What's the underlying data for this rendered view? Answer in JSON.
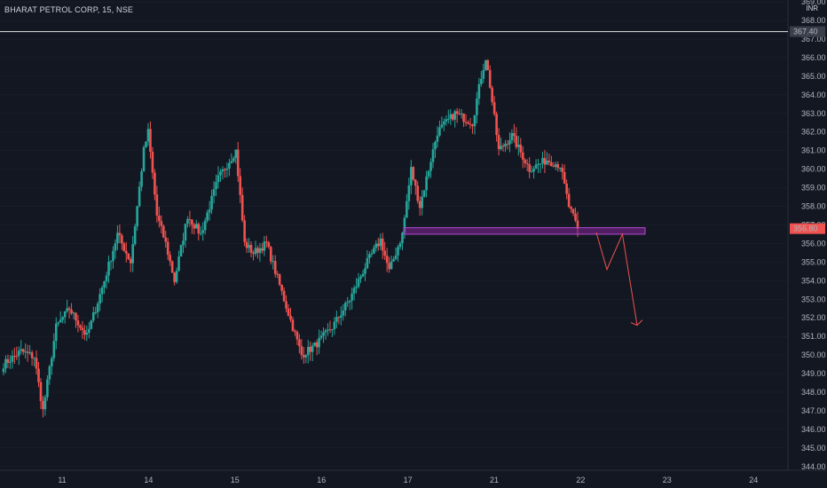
{
  "header": {
    "symbol_line": "BHARAT PETROL CORP, 15, NSE"
  },
  "currency": "INR",
  "colors": {
    "bg": "#131722",
    "up": "#26a69a",
    "down": "#ef5350",
    "zone": "#9c27b0",
    "line": "#e6e6e6",
    "arrow": "#ef5350",
    "grid": "#1f2330"
  },
  "chart_data": {
    "type": "candlestick",
    "title": "BHARAT PETROL CORP, 15, NSE",
    "ylim": [
      343.8,
      369.1
    ],
    "y_ticks": [
      "344.00",
      "345.00",
      "346.00",
      "347.00",
      "348.00",
      "349.00",
      "350.00",
      "351.00",
      "352.00",
      "353.00",
      "354.00",
      "355.00",
      "356.00",
      "357.00",
      "358.00",
      "359.00",
      "360.00",
      "361.00",
      "362.00",
      "363.00",
      "364.00",
      "365.00",
      "366.00",
      "367.00",
      "368.00",
      "369.00"
    ],
    "x_ticks": [
      "11",
      "14",
      "15",
      "16",
      "17",
      "21",
      "22",
      "23",
      "24"
    ],
    "price_label": "356.80",
    "horizontal_line": {
      "value": 367.4,
      "label": "367.40"
    },
    "zone": {
      "low": 356.5,
      "high": 356.85
    },
    "projection_path": [
      [
        0,
        356.6
      ],
      [
        0.26,
        354.6
      ],
      [
        0.64,
        356.5
      ],
      [
        1,
        351.6
      ]
    ],
    "anchors": [
      {
        "t": 0,
        "v": 349.5
      },
      {
        "t": 8,
        "v": 350.2
      },
      {
        "t": 14,
        "v": 349.9
      },
      {
        "t": 18,
        "v": 347.0
      },
      {
        "t": 24,
        "v": 351.5
      },
      {
        "t": 30,
        "v": 352.5
      },
      {
        "t": 38,
        "v": 351.0
      },
      {
        "t": 46,
        "v": 354.0
      },
      {
        "t": 52,
        "v": 356.5
      },
      {
        "t": 58,
        "v": 355.0
      },
      {
        "t": 64,
        "v": 361.0
      },
      {
        "t": 66,
        "v": 362.0
      },
      {
        "t": 70,
        "v": 357.5
      },
      {
        "t": 74,
        "v": 356.0
      },
      {
        "t": 78,
        "v": 354.0
      },
      {
        "t": 84,
        "v": 357.5
      },
      {
        "t": 90,
        "v": 356.5
      },
      {
        "t": 98,
        "v": 359.5
      },
      {
        "t": 106,
        "v": 361.0
      },
      {
        "t": 110,
        "v": 356.0
      },
      {
        "t": 114,
        "v": 355.5
      },
      {
        "t": 120,
        "v": 356.0
      },
      {
        "t": 128,
        "v": 353.0
      },
      {
        "t": 136,
        "v": 350.0
      },
      {
        "t": 142,
        "v": 350.5
      },
      {
        "t": 150,
        "v": 351.5
      },
      {
        "t": 158,
        "v": 353.0
      },
      {
        "t": 166,
        "v": 355.0
      },
      {
        "t": 172,
        "v": 356.2
      },
      {
        "t": 176,
        "v": 354.5
      },
      {
        "t": 182,
        "v": 356.5
      },
      {
        "t": 186,
        "v": 360.0
      },
      {
        "t": 190,
        "v": 358.0
      },
      {
        "t": 198,
        "v": 362.0
      },
      {
        "t": 206,
        "v": 363.0
      },
      {
        "t": 214,
        "v": 362.5
      },
      {
        "t": 218,
        "v": 365.0
      },
      {
        "t": 220,
        "v": 366.0
      },
      {
        "t": 222,
        "v": 364.5
      },
      {
        "t": 226,
        "v": 361.0
      },
      {
        "t": 232,
        "v": 361.8
      },
      {
        "t": 240,
        "v": 360.0
      },
      {
        "t": 248,
        "v": 360.5
      },
      {
        "t": 254,
        "v": 360.2
      },
      {
        "t": 258,
        "v": 358.0
      },
      {
        "t": 262,
        "v": 356.8
      }
    ],
    "volatility": 0.45
  }
}
